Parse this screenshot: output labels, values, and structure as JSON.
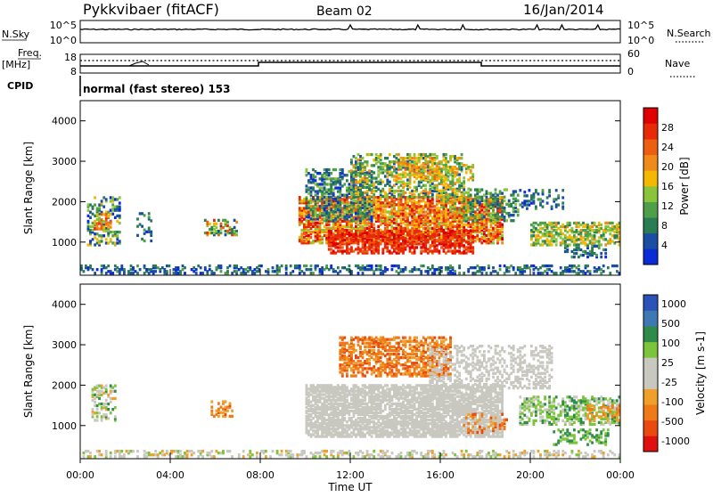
{
  "header": {
    "station": "Pykkvibaer (fitACF)",
    "beam": "Beam 02",
    "date": "16/Jan/2014"
  },
  "sky_panel": {
    "label": "N.Sky",
    "left_ticks": [
      "10^5",
      "10^0"
    ],
    "right_ticks": [
      "10^5",
      "10^0"
    ],
    "right_label": "N.Search"
  },
  "freq_panel": {
    "label_line1": "Freq.",
    "label_line2": "[MHz]",
    "left_ticks": [
      "18",
      "8"
    ],
    "right_ticks": [
      "60",
      "0"
    ],
    "right_label": "Nave"
  },
  "cpid": {
    "label": "CPID",
    "text": "normal (fast stereo) 153"
  },
  "colors": {
    "power": [
      "#0b2bd6",
      "#1b4ea3",
      "#2a7c55",
      "#4f9e4a",
      "#8ac43a",
      "#f4b800",
      "#f08a1a",
      "#ee5e10",
      "#e82a08",
      "#e00000"
    ],
    "velocity": [
      "#2a52b8",
      "#3f79b4",
      "#2f8b4a",
      "#7cc43c",
      "#c8c8c0",
      "#c8c8c0",
      "#f0a028",
      "#ee7a18",
      "#ea4a10",
      "#e01010"
    ]
  },
  "chart_data": [
    {
      "type": "heatmap",
      "name": "power",
      "ylabel": "Slant Range [km]",
      "ylim": [
        180,
        4500
      ],
      "yticks": [
        "1000",
        "2000",
        "3000",
        "4000"
      ],
      "xlim_hours": [
        0,
        24
      ],
      "colorbar": {
        "label": "Power [dB]",
        "range": [
          0,
          32
        ],
        "ticks": [
          "4",
          "8",
          "12",
          "16",
          "20",
          "24",
          "28"
        ]
      }
    },
    {
      "type": "heatmap",
      "name": "velocity",
      "ylabel": "Slant Range [km]",
      "ylim": [
        180,
        4500
      ],
      "yticks": [
        "1000",
        "2000",
        "3000",
        "4000"
      ],
      "xlim_hours": [
        0,
        24
      ],
      "colorbar": {
        "label": "Velocity [m s-1]",
        "ticks": [
          "1000",
          "500",
          "100",
          "25",
          "-25",
          "-100",
          "-500",
          "-1000"
        ]
      }
    }
  ],
  "xaxis": {
    "ticks": [
      "00:00",
      "04:00",
      "08:00",
      "12:00",
      "16:00",
      "20:00",
      "00:00"
    ],
    "label": "Time UT"
  }
}
